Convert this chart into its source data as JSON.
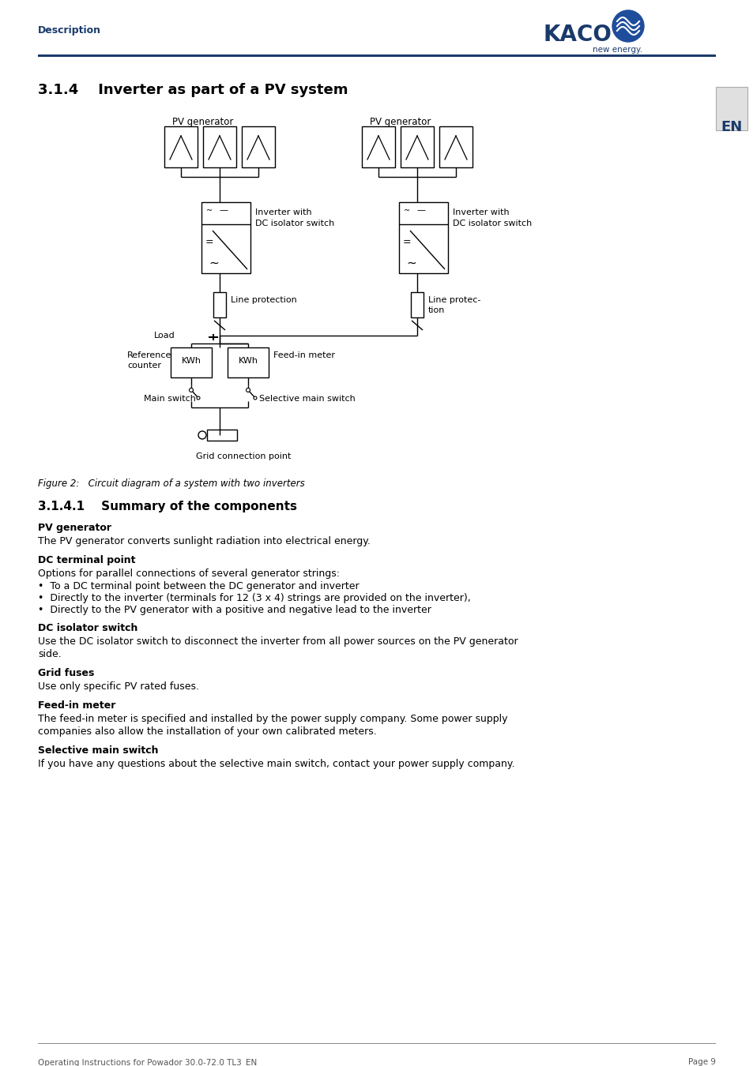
{
  "title_section": "3.1.4    Inverter as part of a PV system",
  "header_left": "Description",
  "en_box_text": "EN",
  "figure_caption": "Figure 2:   Circuit diagram of a system with two inverters",
  "section_title": "3.1.4.1    Summary of the components",
  "subsections": [
    {
      "heading": "PV generator",
      "body": "The PV generator converts sunlight radiation into electrical energy.",
      "bullets": []
    },
    {
      "heading": "DC terminal point",
      "body": "Options for parallel connections of several generator strings:",
      "bullets": [
        "To a DC terminal point between the DC generator and inverter",
        "Directly to the inverter (terminals for 12 (3 x 4) strings are provided on the inverter),",
        "Directly to the PV generator with a positive and negative lead to the inverter"
      ]
    },
    {
      "heading": "DC isolator switch",
      "body": "Use the DC isolator switch to disconnect the inverter from all power sources on the PV generator side.",
      "bullets": []
    },
    {
      "heading": "Grid fuses",
      "body": "Use only specific PV rated fuses.",
      "bullets": []
    },
    {
      "heading": "Feed-in meter",
      "body": "The feed-in meter is specified and installed by the power supply company. Some power supply companies also allow the installation of your own calibrated meters.",
      "bullets": []
    },
    {
      "heading": "Selective main switch",
      "body": "If you have any questions about the selective main switch, contact your power supply company.",
      "bullets": []
    }
  ],
  "footer_left": "Operating Instructions for Powador 30.0-72.0 TL3_EN",
  "footer_right": "Page 9",
  "header_line_color": "#1a3a6b",
  "header_text_color": "#1a3a6b",
  "bg_color": "#ffffff"
}
